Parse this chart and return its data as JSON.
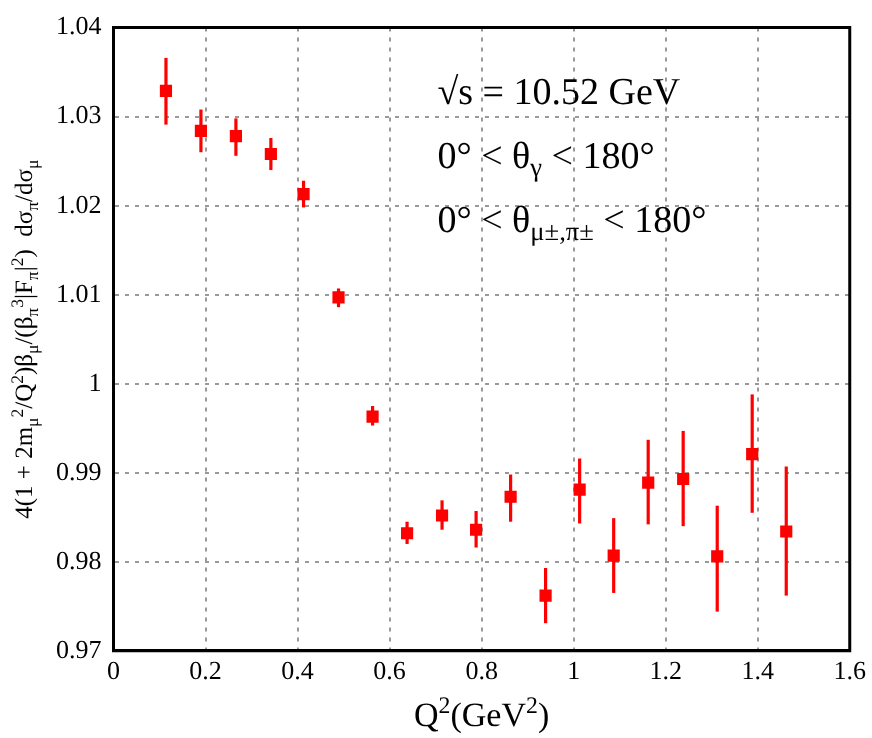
{
  "chart_data": {
    "type": "scatter",
    "xlabel": "Q$^{2}$(GeV$^{2}$)",
    "ylabel": "4(1 + 2m$_{μ}$$^{2}$/Q$^{2}$)β$_{μ}$/(β$_{π}$$^{3}$|F$_{π}$|$^{2}$)  dσ$_{π}$/dσ$_{μ}$",
    "annotations": [
      "√s = 10.52 GeV",
      "0° < θ$_{γ}$ < 180°",
      "0° < θ$_{μ±,π±}$ < 180°"
    ],
    "x": [
      0.114,
      0.19,
      0.266,
      0.342,
      0.413,
      0.489,
      0.563,
      0.638,
      0.714,
      0.788,
      0.863,
      0.939,
      1.013,
      1.087,
      1.162,
      1.238,
      1.312,
      1.388,
      1.462
    ],
    "series": [
      {
        "color": "#ff0000",
        "values": [
          1.0329,
          1.0284,
          1.0278,
          1.0258,
          1.0213,
          1.0097,
          0.9963,
          0.9832,
          0.9852,
          0.9836,
          0.9873,
          0.9762,
          0.9881,
          0.9807,
          0.9889,
          0.9893,
          0.9806,
          0.9921,
          0.9834
        ],
        "errors": [
          [
            1.0291,
            1.0366
          ],
          [
            1.026,
            1.0308
          ],
          [
            1.0256,
            1.0298
          ],
          [
            1.024,
            1.0276
          ],
          [
            1.0198,
            1.0228
          ],
          [
            1.0086,
            1.0107
          ],
          [
            0.9953,
            0.9975
          ],
          [
            0.982,
            0.9845
          ],
          [
            0.9836,
            0.9869
          ],
          [
            0.9816,
            0.9857
          ],
          [
            0.9845,
            0.9898
          ],
          [
            0.9731,
            0.9793
          ],
          [
            0.9843,
            0.9916
          ],
          [
            0.9765,
            0.9849
          ],
          [
            0.9842,
            0.9937
          ],
          [
            0.984,
            0.9947
          ],
          [
            0.9744,
            0.9863
          ],
          [
            0.9855,
            0.9988
          ],
          [
            0.9762,
            0.9907
          ]
        ]
      }
    ],
    "xlim": [
      0,
      1.6
    ],
    "xticks": [
      0,
      0.2,
      0.4,
      0.6,
      0.8,
      1,
      1.2,
      1.4,
      1.6
    ],
    "ylim": [
      0.97,
      1.04
    ],
    "yticks": [
      0.97,
      0.98,
      0.99,
      1,
      1.01,
      1.02,
      1.03,
      1.04
    ],
    "grid": true,
    "marker": "square",
    "legend": false
  }
}
